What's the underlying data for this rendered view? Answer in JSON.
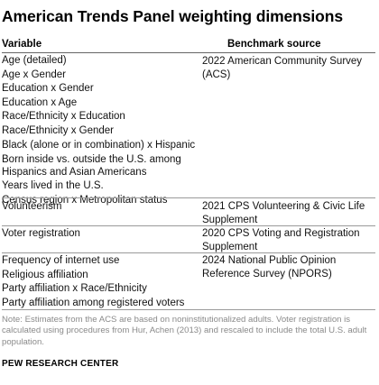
{
  "title": "American Trends Panel weighting dimensions",
  "columns": {
    "variable": "Variable",
    "benchmark": "Benchmark source"
  },
  "groups": [
    {
      "variables": [
        "Age (detailed)",
        "Age x Gender",
        "Education x Gender",
        "Education x Age",
        "Race/Ethnicity x Education",
        "Race/Ethnicity x Gender",
        "Black (alone or in combination) x Hispanic",
        "Born inside vs. outside the U.S. among Hispanics and Asian Americans",
        "Years lived in the U.S.",
        "Census region x Metropolitan status"
      ],
      "benchmark": "2022 American Community Survey (ACS)"
    },
    {
      "variables": [
        "Volunteerism"
      ],
      "benchmark": "2021 CPS Volunteering & Civic Life Supplement"
    },
    {
      "variables": [
        "Voter registration"
      ],
      "benchmark": "2020 CPS Voting and Registration Supplement"
    },
    {
      "variables": [
        "Frequency of internet use",
        "Religious affiliation",
        "Party affiliation x Race/Ethnicity",
        "Party affiliation among registered voters"
      ],
      "benchmark": "2024 National Public Opinion Reference Survey (NPORS)"
    }
  ],
  "note": "Note: Estimates from the ACS are based on noninstitutionalized adults. Voter registration is calculated using procedures from Hur, Achen (2013) and rescaled to include the total U.S. adult population.",
  "source": "PEW RESEARCH CENTER"
}
